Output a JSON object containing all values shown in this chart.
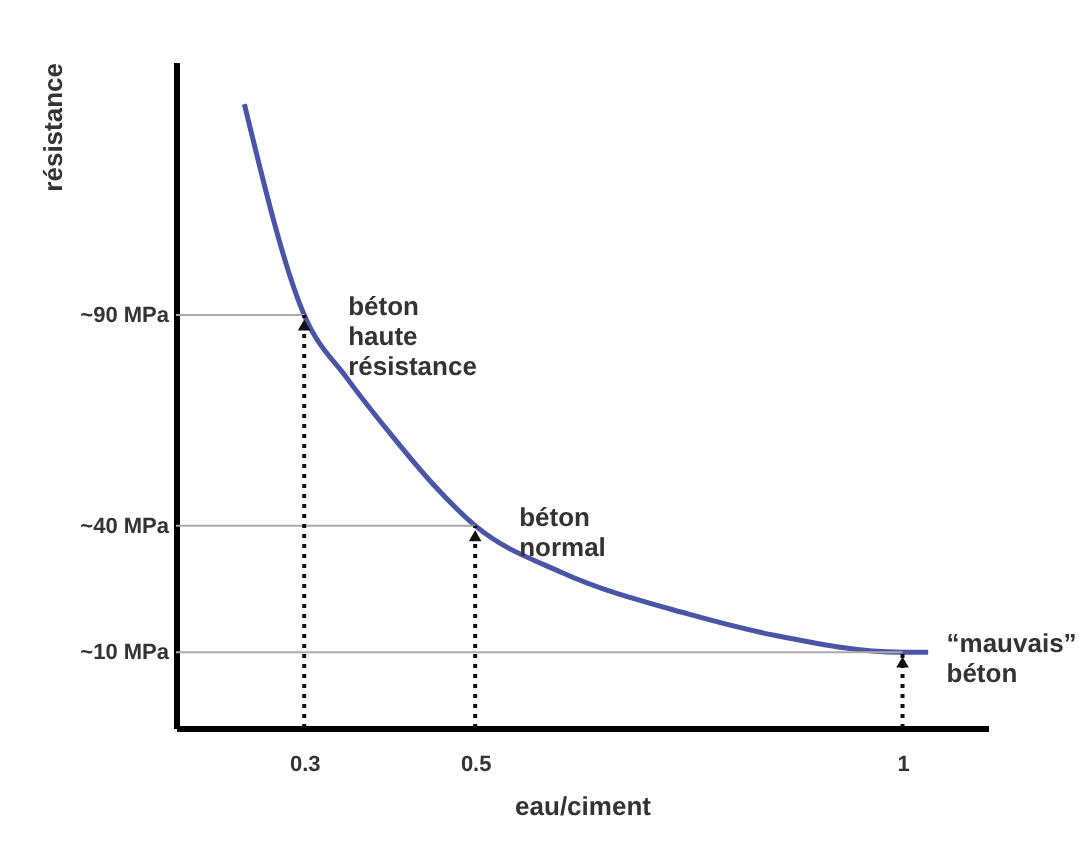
{
  "chart_data": {
    "type": "line",
    "xlabel": "eau/ciment",
    "ylabel": "résistance",
    "x": [
      0.23,
      0.3,
      0.35,
      0.4,
      0.45,
      0.5,
      0.6,
      0.75,
      0.85,
      1,
      1.03
    ],
    "series": [
      {
        "color": "#4a55a8",
        "values": [
          140,
          90,
          75,
          62,
          50,
          40,
          29,
          19,
          14,
          10,
          10
        ]
      }
    ],
    "xlim": [
      0.15,
      1.1
    ],
    "xticks": [
      0.3,
      0.5,
      1
    ],
    "ylim": [
      -8,
      150
    ],
    "yticks": [
      {
        "value": 10,
        "label": "~10 MPa"
      },
      {
        "value": 40,
        "label": "~40 MPa"
      },
      {
        "value": 90,
        "label": "~90 MPa"
      }
    ],
    "ref_lines": [
      {
        "axis": "y",
        "value": 90,
        "color": "#aaaaaa",
        "line_style": "solid"
      },
      {
        "axis": "y",
        "value": 40,
        "color": "#aaaaaa",
        "line_style": "solid"
      },
      {
        "axis": "y",
        "value": 10,
        "color": "#aaaaaa",
        "line_style": "solid"
      },
      {
        "axis": "x",
        "value": 0.3,
        "color": "#111111",
        "line_style": "dotted"
      },
      {
        "axis": "x",
        "value": 0.5,
        "color": "#111111",
        "line_style": "dotted"
      },
      {
        "axis": "x",
        "value": 1,
        "color": "#111111",
        "line_style": "dotted"
      }
    ],
    "annotations": [
      {
        "text": "béton\nhaute\nrésistance",
        "x": 0.3,
        "y": 90
      },
      {
        "text": "béton\nnormal",
        "x": 0.5,
        "y": 40
      },
      {
        "text": "“mauvais”\nbéton",
        "x": 1,
        "y": 10
      }
    ],
    "marker": "none",
    "line_style": "solid"
  }
}
